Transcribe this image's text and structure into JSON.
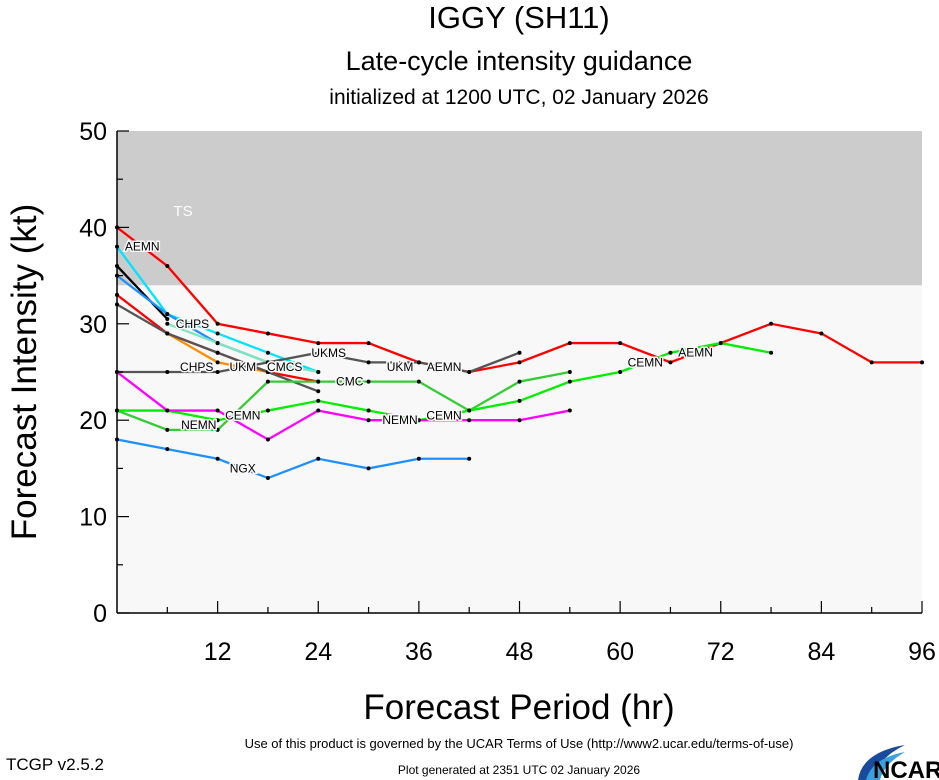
{
  "chart_data": {
    "type": "line",
    "title": "IGGY (SH11)",
    "subtitle": "Late-cycle intensity guidance",
    "subtitle2": "initialized at 1200 UTC, 02 January 2026",
    "xlabel": "Forecast Period (hr)",
    "ylabel": "Forecast Intensity (kt)",
    "xlim": [
      0,
      96
    ],
    "ylim": [
      0,
      50
    ],
    "xticks": [
      12,
      24,
      36,
      48,
      60,
      72,
      84,
      96
    ],
    "yticks": [
      0,
      10,
      20,
      30,
      40,
      50
    ],
    "band": {
      "label": "TS",
      "from": 34,
      "to": 50,
      "color": "#cccccc"
    },
    "plot_bg": "#f8f8f8",
    "series": [
      {
        "name": "AEMN",
        "color": "#ff0000",
        "x": [
          0,
          6,
          12,
          18,
          24,
          30,
          36,
          42,
          48,
          54,
          60,
          66,
          72,
          78,
          84,
          90,
          96
        ],
        "y": [
          40,
          36,
          30,
          29,
          28,
          28,
          26,
          25,
          26,
          28,
          28,
          26,
          28,
          30,
          29,
          26,
          26
        ],
        "labels_at": [
          1,
          7,
          12
        ]
      },
      {
        "name": "CHPS",
        "color": "#00e5ff",
        "x": [
          0,
          6,
          12,
          18,
          24
        ],
        "y": [
          38,
          31,
          29,
          27,
          25
        ],
        "labels_at": [
          2
        ]
      },
      {
        "name": "",
        "color": "#000000",
        "x": [
          0,
          6
        ],
        "y": [
          36,
          30.5
        ],
        "labels_at": []
      },
      {
        "name": "",
        "color": "#1e90ff",
        "x": [
          0,
          6,
          12,
          18
        ],
        "y": [
          35,
          31,
          28,
          26
        ],
        "labels_at": []
      },
      {
        "name": "",
        "color": "#7fe5c0",
        "x": [
          6,
          12,
          18,
          24
        ],
        "y": [
          30,
          28,
          26,
          25
        ],
        "labels_at": []
      },
      {
        "name": "",
        "color": "#ff8c00",
        "x": [
          6,
          12,
          18
        ],
        "y": [
          29,
          26,
          25
        ],
        "labels_at": []
      },
      {
        "name": "",
        "color": "#ff0000",
        "x": [
          0,
          6,
          12,
          18,
          24
        ],
        "y": [
          33,
          29,
          27,
          25,
          24
        ],
        "labels_at": []
      },
      {
        "name": "",
        "color": "#555555",
        "x": [
          0,
          6,
          12,
          18,
          24
        ],
        "y": [
          32,
          29,
          27,
          25,
          23
        ],
        "labels_at": []
      },
      {
        "name": "UKM",
        "color": "#555555",
        "x": [
          0,
          6,
          12,
          18,
          24,
          30,
          36,
          42,
          48
        ],
        "y": [
          25,
          25,
          25,
          26,
          27,
          26,
          26,
          25,
          27
        ],
        "labels_at": [
          3,
          7
        ]
      },
      {
        "name": "CMC",
        "color": "#33cc33",
        "x": [
          0,
          6,
          12,
          18,
          24,
          30,
          36,
          42,
          48,
          54
        ],
        "y": [
          21,
          19,
          19,
          24,
          24,
          24,
          24,
          21,
          24,
          25
        ],
        "labels_at": [
          6
        ]
      },
      {
        "name": "CEMN",
        "color": "#00ee00",
        "x": [
          0,
          6,
          12,
          18,
          24,
          30,
          36,
          42,
          48,
          54,
          60,
          66,
          72,
          78
        ],
        "y": [
          21,
          21,
          20,
          21,
          22,
          21,
          20,
          21,
          22,
          24,
          25,
          27,
          28,
          27
        ],
        "labels_at": [
          3,
          7,
          11
        ]
      },
      {
        "name": "NEMN",
        "color": "#ff00ff",
        "x": [
          0,
          6,
          12,
          18,
          24,
          30,
          36,
          42,
          48,
          54
        ],
        "y": [
          25,
          21,
          21,
          18,
          21,
          20,
          20,
          20,
          20,
          21
        ],
        "labels_at": [
          3,
          7
        ]
      },
      {
        "name": "NGX",
        "color": "#1e90ff",
        "x": [
          0,
          6,
          12,
          18,
          24,
          30,
          36,
          42
        ],
        "y": [
          18,
          17,
          16,
          14,
          16,
          15,
          16,
          16
        ],
        "labels_at": [
          3
        ]
      }
    ],
    "cluster_labels": [
      "CMCS",
      "CHPS",
      "UKMS"
    ]
  },
  "footer": {
    "terms": "Use of this product is governed by the UCAR Terms of Use (http://www2.ucar.edu/terms-of-use)",
    "version": "TCGP v2.5.2",
    "generated": "Plot generated at 2351 UTC   02 January 2026",
    "logo": "NCAR"
  }
}
